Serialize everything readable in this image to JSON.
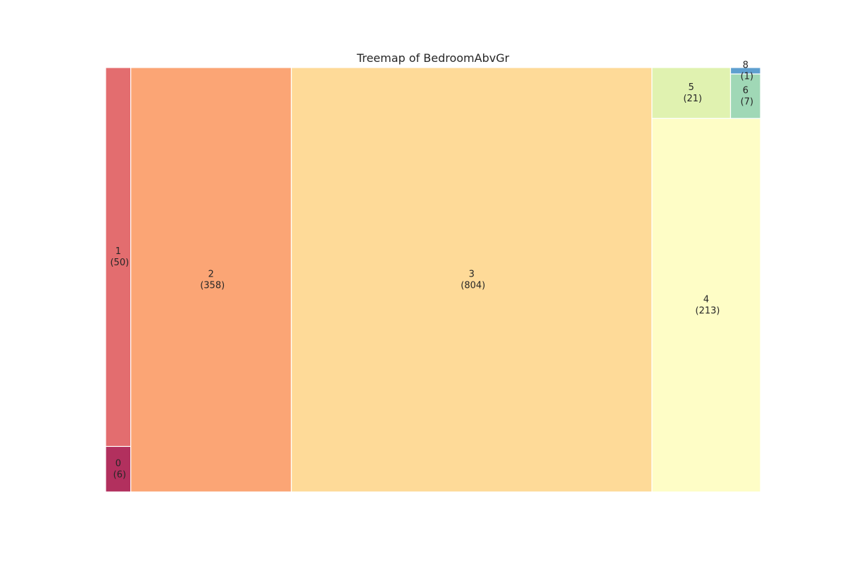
{
  "chart_data": {
    "type": "treemap",
    "title": "Treemap of BedroomAbvGr",
    "grid": false,
    "legend": "none",
    "items": [
      {
        "label": "0",
        "count_label": "(6)",
        "value": 6,
        "color": "#b2305e"
      },
      {
        "label": "1",
        "count_label": "(50)",
        "value": 50,
        "color": "#e36d6f"
      },
      {
        "label": "2",
        "count_label": "(358)",
        "value": 358,
        "color": "#fba575"
      },
      {
        "label": "3",
        "count_label": "(804)",
        "value": 804,
        "color": "#feda98"
      },
      {
        "label": "4",
        "count_label": "(213)",
        "value": 213,
        "color": "#fefdc6"
      },
      {
        "label": "5",
        "count_label": "(21)",
        "value": 21,
        "color": "#e0f2b0"
      },
      {
        "label": "6",
        "count_label": "(7)",
        "value": 7,
        "color": "#a0d8b6"
      },
      {
        "label": "8",
        "count_label": "(1)",
        "value": 1,
        "color": "#5e9fcf"
      }
    ]
  }
}
